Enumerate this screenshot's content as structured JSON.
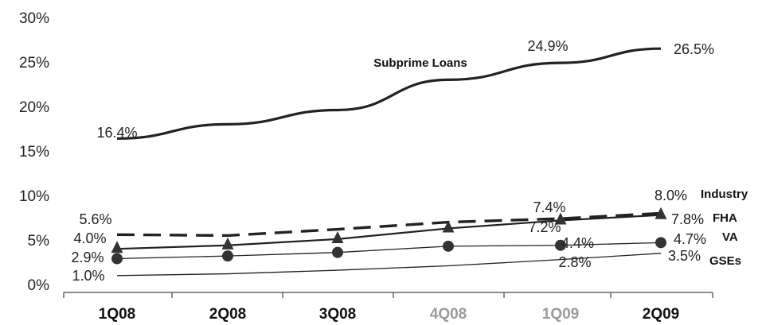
{
  "chart_data": {
    "type": "line",
    "categories": [
      "1Q08",
      "2Q08",
      "3Q08",
      "4Q08",
      "1Q09",
      "2Q09"
    ],
    "category_colors": [
      "#111111",
      "#111111",
      "#111111",
      "#9a9a9a",
      "#9a9a9a",
      "#111111"
    ],
    "ylim": [
      0,
      30
    ],
    "yticks": [
      "0%",
      "5%",
      "10%",
      "15%",
      "20%",
      "25%",
      "30%"
    ],
    "grid": false,
    "series": [
      {
        "name": "Subprime Loans",
        "values": [
          16.4,
          18.0,
          19.6,
          23.0,
          24.9,
          26.5
        ],
        "style": "solid-thick",
        "marker": "none",
        "labels": [
          {
            "index": 0,
            "text": "16.4%"
          },
          {
            "index": 4,
            "text": "24.9%"
          },
          {
            "index": 5,
            "text": "26.5%"
          }
        ]
      },
      {
        "name": "Industry",
        "values": [
          5.6,
          5.5,
          6.2,
          7.0,
          7.4,
          8.0
        ],
        "style": "dashed",
        "marker": "none",
        "labels": [
          {
            "index": 0,
            "text": "5.6%"
          },
          {
            "index": 4,
            "text": "7.4%"
          },
          {
            "index": 5,
            "text": "8.0%"
          }
        ]
      },
      {
        "name": "FHA",
        "values": [
          4.0,
          4.4,
          5.1,
          6.3,
          7.2,
          7.8
        ],
        "style": "solid",
        "marker": "triangle",
        "labels": [
          {
            "index": 0,
            "text": "4.0%"
          },
          {
            "index": 4,
            "text": "7.2%"
          },
          {
            "index": 5,
            "text": "7.8%"
          }
        ]
      },
      {
        "name": "VA",
        "values": [
          2.9,
          3.2,
          3.6,
          4.3,
          4.4,
          4.7
        ],
        "style": "solid-thin",
        "marker": "circle",
        "labels": [
          {
            "index": 0,
            "text": "2.9%"
          },
          {
            "index": 4,
            "text": "4.4%"
          },
          {
            "index": 5,
            "text": "4.7%"
          }
        ]
      },
      {
        "name": "GSEs",
        "values": [
          1.0,
          1.2,
          1.6,
          2.1,
          2.8,
          3.5
        ],
        "style": "solid-thin",
        "marker": "none",
        "labels": [
          {
            "index": 0,
            "text": "1.0%"
          },
          {
            "index": 4,
            "text": "2.8%"
          },
          {
            "index": 5,
            "text": "3.5%"
          }
        ]
      }
    ]
  }
}
